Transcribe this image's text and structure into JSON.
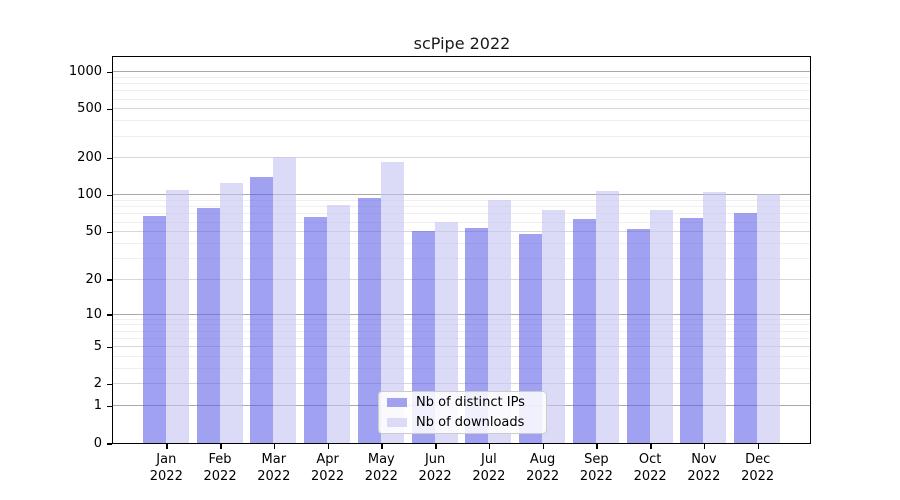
{
  "chart_data": {
    "type": "bar",
    "title": "scPipe 2022",
    "categories": [
      "Jan",
      "Feb",
      "Mar",
      "Apr",
      "May",
      "Jun",
      "Jul",
      "Aug",
      "Sep",
      "Oct",
      "Nov",
      "Dec"
    ],
    "x_axis": {
      "label_line2": "2022"
    },
    "series": [
      {
        "name": "Nb of distinct IPs",
        "values": [
          66,
          78,
          140,
          65,
          94,
          50,
          53,
          47,
          63,
          52,
          64,
          70
        ],
        "fill": "rgba(93,93,231,0.58)",
        "legend_color": "#a1a1f0"
      },
      {
        "name": "Nb of downloads",
        "values": [
          108,
          124,
          202,
          82,
          182,
          59,
          90,
          74,
          106,
          74,
          105,
          100
        ],
        "fill": "rgba(197,197,242,0.62)",
        "legend_color": "#dbdbf7"
      }
    ],
    "y_axis": {
      "scale": "log1p",
      "tick_values": [
        0,
        1,
        2,
        5,
        10,
        20,
        50,
        100,
        200,
        500,
        1000
      ],
      "minor_values": [
        3,
        4,
        6,
        7,
        8,
        9,
        30,
        40,
        60,
        70,
        80,
        90,
        300,
        400,
        600,
        700,
        800,
        900
      ],
      "range_max": 1300
    },
    "legend": {
      "position": "bottom-center"
    },
    "grid": true,
    "colors": {
      "grid_major": "#a9a9a9",
      "grid_mid": "#d7d7d7",
      "grid_minor": "#efefef",
      "axis": "#000000"
    }
  }
}
